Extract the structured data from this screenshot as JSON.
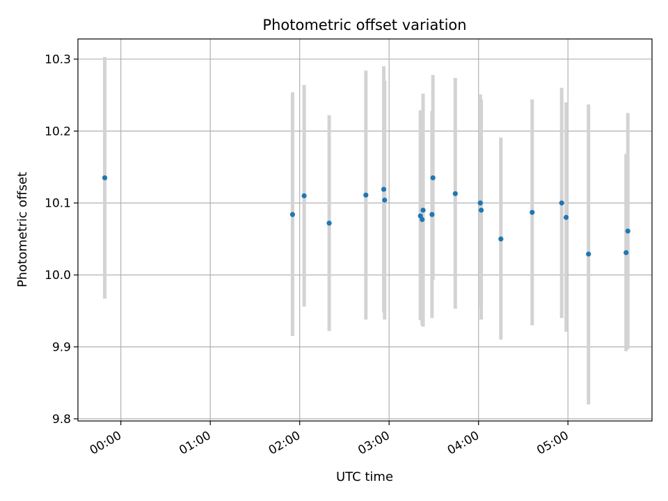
{
  "chart_data": {
    "type": "scatter",
    "title": "Photometric offset variation",
    "xlabel": "UTC time",
    "ylabel": "Photometric offset",
    "x_tick_labels": [
      "00:00",
      "01:00",
      "02:00",
      "03:00",
      "04:00",
      "05:00"
    ],
    "x_tick_values_hours": [
      0,
      1,
      2,
      3,
      4,
      5
    ],
    "xlim_hours": [
      -0.48,
      5.94
    ],
    "y_tick_labels": [
      "9.8",
      "9.9",
      "10.0",
      "10.1",
      "10.2",
      "10.3"
    ],
    "y_tick_values": [
      9.8,
      9.9,
      10.0,
      10.1,
      10.2,
      10.3
    ],
    "ylim": [
      9.797,
      10.328
    ],
    "grid": true,
    "colors": {
      "point": "#1f77b4",
      "errorbar": "#d3d3d3",
      "grid": "#b0b0b0"
    },
    "series": [
      {
        "points": [
          {
            "t": -0.18,
            "y": 10.135,
            "lo": 9.967,
            "hi": 10.303
          },
          {
            "t": 1.92,
            "y": 10.084,
            "lo": 9.915,
            "hi": 10.254
          },
          {
            "t": 2.05,
            "y": 10.11,
            "lo": 9.956,
            "hi": 10.264
          },
          {
            "t": 2.33,
            "y": 10.072,
            "lo": 9.922,
            "hi": 10.222
          },
          {
            "t": 2.74,
            "y": 10.111,
            "lo": 9.938,
            "hi": 10.284
          },
          {
            "t": 2.94,
            "y": 10.119,
            "lo": 9.948,
            "hi": 10.29
          },
          {
            "t": 2.95,
            "y": 10.104,
            "lo": 9.938,
            "hi": 10.27
          },
          {
            "t": 3.35,
            "y": 10.082,
            "lo": 9.937,
            "hi": 10.229
          },
          {
            "t": 3.37,
            "y": 10.077,
            "lo": 9.93,
            "hi": 10.224
          },
          {
            "t": 3.38,
            "y": 10.09,
            "lo": 9.928,
            "hi": 10.252
          },
          {
            "t": 3.48,
            "y": 10.084,
            "lo": 9.94,
            "hi": 10.228
          },
          {
            "t": 3.49,
            "y": 10.135,
            "lo": 9.993,
            "hi": 10.278
          },
          {
            "t": 3.74,
            "y": 10.113,
            "lo": 9.953,
            "hi": 10.274
          },
          {
            "t": 4.02,
            "y": 10.1,
            "lo": 9.955,
            "hi": 10.251
          },
          {
            "t": 4.03,
            "y": 10.09,
            "lo": 9.938,
            "hi": 10.244
          },
          {
            "t": 4.25,
            "y": 10.05,
            "lo": 9.91,
            "hi": 10.191
          },
          {
            "t": 4.6,
            "y": 10.087,
            "lo": 9.93,
            "hi": 10.244
          },
          {
            "t": 4.93,
            "y": 10.1,
            "lo": 9.94,
            "hi": 10.26
          },
          {
            "t": 4.98,
            "y": 10.08,
            "lo": 9.921,
            "hi": 10.24
          },
          {
            "t": 5.23,
            "y": 10.029,
            "lo": 9.82,
            "hi": 10.237
          },
          {
            "t": 5.65,
            "y": 10.031,
            "lo": 9.894,
            "hi": 10.168
          },
          {
            "t": 5.67,
            "y": 10.061,
            "lo": 9.897,
            "hi": 10.225
          }
        ]
      }
    ]
  }
}
